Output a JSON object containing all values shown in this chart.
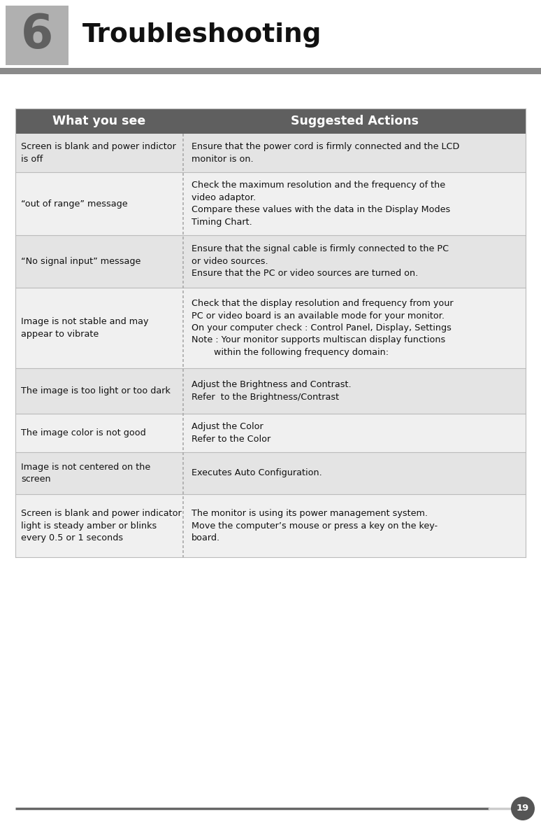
{
  "page_bg": "#ffffff",
  "header_bar_color": "#7a7a7a",
  "header_number": "6",
  "header_number_bg": "#b0b0b0",
  "header_number_color": "#606060",
  "header_title": "Troubleshooting",
  "header_title_color": "#111111",
  "header_underline_color": "#8a8a8a",
  "table_header_bg": "#5f5f5f",
  "table_header_text_color": "#ffffff",
  "table_header_col1": "What you see",
  "table_header_col2": "Suggested Actions",
  "table_row_bg_odd": "#e4e4e4",
  "table_row_bg_even": "#f0f0f0",
  "divider_color": "#aaaaaa",
  "footer_line_dark": "#666666",
  "footer_line_light": "#cccccc",
  "footer_page_number": "19",
  "footer_circle_color": "#555555",
  "rows": [
    {
      "col1": "Screen is blank and power indictor\nis off",
      "col2": "Ensure that the power cord is firmly connected and the LCD\nmonitor is on."
    },
    {
      "col1": "“out of range” message",
      "col2": "Check the maximum resolution and the frequency of the\nvideo adaptor.\nCompare these values with the data in the Display Modes\nTiming Chart."
    },
    {
      "col1": "“No signal input” message",
      "col2": "Ensure that the signal cable is firmly connected to the PC\nor video sources.\nEnsure that the PC or video sources are turned on."
    },
    {
      "col1": "Image is not stable and may\nappear to vibrate",
      "col2": "Check that the display resolution and frequency from your\nPC or video board is an available mode for your monitor.\nOn your computer check : Control Panel, Display, Settings\nNote : Your monitor supports multiscan display functions\n        within the following frequency domain:"
    },
    {
      "col1": "The image is too light or too dark",
      "col2": "Adjust the Brightness and Contrast.\nRefer  to the Brightness/Contrast"
    },
    {
      "col1": "The image color is not good",
      "col2": "Adjust the Color\nRefer to the Color"
    },
    {
      "col1": "Image is not centered on the\nscreen",
      "col2": "Executes Auto Configuration."
    },
    {
      "col1": "Screen is blank and power indicator\nlight is steady amber or blinks\nevery 0.5 or 1 seconds",
      "col2": "The monitor is using its power management system.\nMove the computer’s mouse or press a key on the key-\nboard."
    }
  ]
}
